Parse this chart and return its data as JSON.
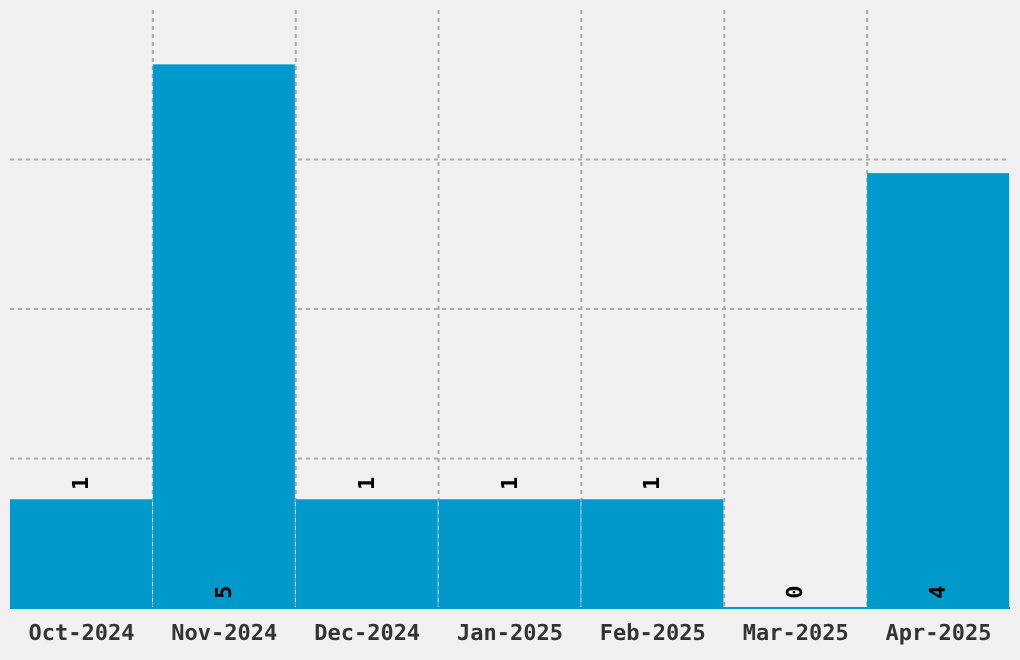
{
  "chart_data": {
    "type": "bar",
    "categories": [
      "Oct-2024",
      "Nov-2024",
      "Dec-2024",
      "Jan-2025",
      "Feb-2025",
      "Mar-2025",
      "Apr-2025"
    ],
    "values": [
      1,
      5,
      1,
      1,
      1,
      0,
      4
    ],
    "color": "#0099cc",
    "data_labels": true,
    "ylim": [
      0,
      5.5
    ],
    "yticks": [
      {
        "value": 1.375,
        "label": null
      },
      {
        "value": 2.75,
        "label": null
      },
      {
        "value": 4.125,
        "label": null
      }
    ],
    "grid": true,
    "tick_labels": "x"
  }
}
